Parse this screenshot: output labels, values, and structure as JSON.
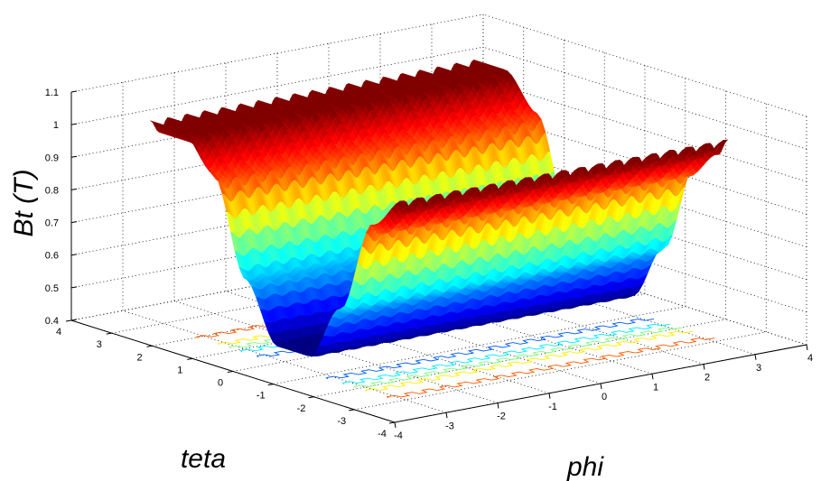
{
  "chart_data": {
    "type": "surface",
    "zlabel": "Bt (T)",
    "xlabel": "teta",
    "ylabel": "phi",
    "zlim": [
      0.4,
      1.1
    ],
    "xlim": [
      -4,
      4
    ],
    "ylim": [
      -4,
      4
    ],
    "ztick_labels": [
      "0.4",
      "0.5",
      "0.6",
      "0.7",
      "0.8",
      "0.9",
      "1",
      "1.1"
    ],
    "xtick_labels": [
      "-4",
      "-3",
      "-2",
      "-1",
      "0",
      "1",
      "2",
      "3",
      "4"
    ],
    "ytick_labels": [
      "-4",
      "-3",
      "-2",
      "-1",
      "0",
      "1",
      "2",
      "3",
      "4"
    ],
    "grid": true,
    "colormap": "jet",
    "contour_projection": true,
    "series": [
      {
        "teta": [
          -3.14,
          -2.36,
          -1.57,
          -0.79,
          0,
          0.79,
          1.57,
          2.36,
          3.14
        ],
        "Bt_profile": [
          1.0,
          0.9,
          0.62,
          0.45,
          0.45,
          0.62,
          0.9,
          1.0,
          1.0
        ],
        "phi_range": [
          -3.14,
          3.14
        ],
        "phi_ripple_periods": 18,
        "ripple_amplitude": 0.02
      }
    ]
  }
}
